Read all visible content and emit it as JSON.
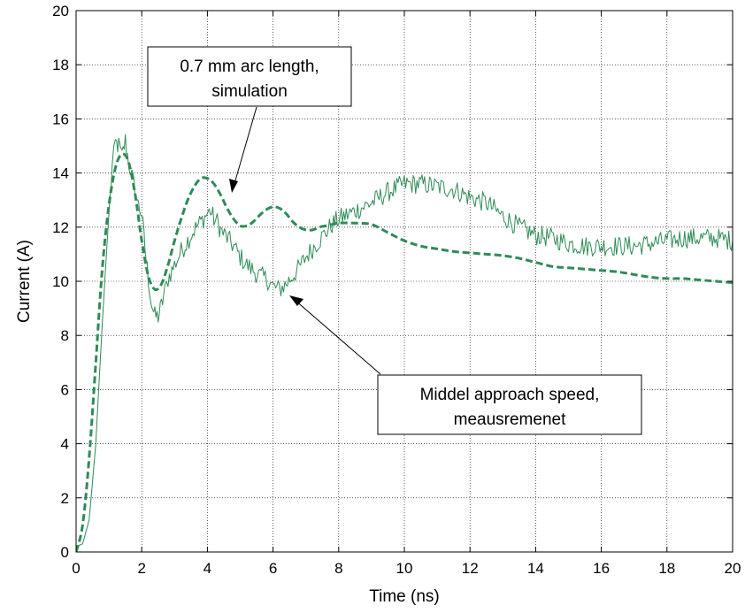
{
  "chart_data": {
    "type": "line",
    "xlabel": "Time (ns)",
    "ylabel": "Current (A)",
    "xlim": [
      0,
      20
    ],
    "ylim": [
      0,
      20
    ],
    "x_ticks": [
      "0",
      "2",
      "4",
      "6",
      "8",
      "10",
      "12",
      "14",
      "16",
      "18",
      "20"
    ],
    "y_ticks": [
      "0",
      "2",
      "4",
      "6",
      "8",
      "10",
      "12",
      "14",
      "16",
      "18",
      "20"
    ],
    "grid": true,
    "series_color": "#2e8b57",
    "series": [
      {
        "style": "dashed-thick",
        "x": [
          0,
          0.2,
          0.4,
          0.6,
          0.8,
          1.0,
          1.2,
          1.4,
          1.6,
          1.8,
          2.0,
          2.2,
          2.4,
          2.6,
          2.8,
          3.0,
          3.2,
          3.4,
          3.6,
          3.8,
          4.0,
          4.2,
          4.4,
          4.6,
          4.8,
          5.0,
          5.2,
          5.4,
          5.6,
          5.8,
          6.0,
          6.2,
          6.4,
          6.6,
          6.8,
          7.0,
          7.2,
          7.4,
          7.6,
          7.8,
          8.0,
          8.5,
          9.0,
          9.5,
          10,
          10.5,
          11,
          11.5,
          12,
          12.5,
          13,
          13.5,
          14,
          14.5,
          15,
          15.5,
          16,
          16.5,
          17,
          17.5,
          18,
          18.5,
          19,
          19.5,
          20
        ],
        "y": [
          0.0,
          1.0,
          3.5,
          7.0,
          10.5,
          12.8,
          14.2,
          14.7,
          14.4,
          13.2,
          11.5,
          10.2,
          9.7,
          9.9,
          10.6,
          11.5,
          12.3,
          13.0,
          13.5,
          13.8,
          13.8,
          13.6,
          13.2,
          12.7,
          12.3,
          12.05,
          12.05,
          12.2,
          12.45,
          12.65,
          12.75,
          12.7,
          12.5,
          12.2,
          12.0,
          11.9,
          11.9,
          12.0,
          12.05,
          12.1,
          12.15,
          12.15,
          12.1,
          11.8,
          11.5,
          11.3,
          11.2,
          11.1,
          11.05,
          11.0,
          10.95,
          10.85,
          10.7,
          10.55,
          10.5,
          10.45,
          10.4,
          10.35,
          10.25,
          10.15,
          10.1,
          10.1,
          10.05,
          10.0,
          9.95
        ]
      },
      {
        "style": "thin-noisy",
        "x": [
          0,
          0.2,
          0.4,
          0.6,
          0.8,
          1.0,
          1.1,
          1.2,
          1.3,
          1.4,
          1.5,
          1.6,
          1.7,
          1.8,
          1.9,
          2.0,
          2.1,
          2.2,
          2.3,
          2.4,
          2.5,
          2.6,
          2.7,
          2.8,
          3.0,
          3.2,
          3.4,
          3.6,
          3.8,
          4.0,
          4.1,
          4.2,
          4.3,
          4.4,
          4.6,
          4.8,
          5.0,
          5.2,
          5.4,
          5.6,
          5.8,
          6.0,
          6.2,
          6.4,
          6.6,
          6.8,
          7.0,
          7.2,
          7.4,
          7.6,
          7.8,
          8.0,
          8.5,
          9.0,
          9.5,
          10,
          10.5,
          11,
          11.5,
          12,
          12.5,
          13,
          13.5,
          14,
          14.5,
          15,
          15.5,
          16,
          16.5,
          17,
          17.5,
          18,
          18.5,
          19,
          19.5,
          20
        ],
        "y": [
          0.2,
          0.3,
          1.2,
          4.0,
          8.5,
          12.5,
          14.2,
          15.1,
          15.0,
          14.6,
          15.2,
          14.4,
          13.9,
          13.3,
          12.8,
          12.5,
          11.2,
          10.1,
          9.2,
          8.7,
          8.7,
          9.1,
          9.6,
          10.1,
          10.6,
          11.1,
          11.5,
          11.9,
          12.2,
          12.5,
          12.6,
          12.3,
          12.2,
          11.9,
          11.6,
          11.3,
          10.9,
          10.6,
          10.4,
          10.2,
          10.1,
          9.8,
          9.7,
          9.9,
          10.2,
          10.5,
          10.9,
          11.2,
          11.5,
          11.8,
          12.1,
          12.3,
          12.6,
          12.9,
          13.3,
          13.6,
          13.6,
          13.5,
          13.4,
          13.1,
          12.9,
          12.4,
          12.0,
          11.7,
          11.6,
          11.4,
          11.3,
          11.3,
          11.3,
          11.3,
          11.4,
          11.5,
          11.6,
          11.6,
          11.6,
          11.5
        ]
      }
    ],
    "annotations": [
      {
        "lines": [
          "0.7 mm arc length,",
          "simulation"
        ]
      },
      {
        "lines": [
          "Middel approach speed,",
          "meausremenet"
        ]
      }
    ]
  }
}
